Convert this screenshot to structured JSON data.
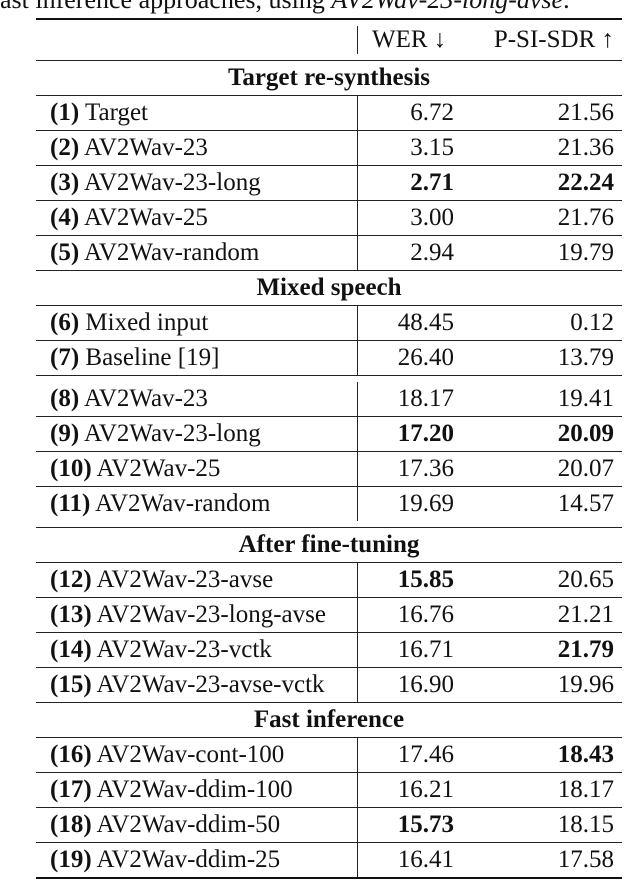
{
  "caption": {
    "prefix": "ast inference approaches, using ",
    "italic": "AV2Wav-23-long-avse",
    "suffix": "."
  },
  "columns": [
    "WER ↓",
    "P-SI-SDR ↑"
  ],
  "sections": [
    {
      "title": "Target re-synthesis",
      "rows": [
        {
          "num": "(1)",
          "name": "Target",
          "wer": "6.72",
          "sdr": "21.56",
          "wer_bold": false,
          "sdr_bold": false
        },
        {
          "num": "(2)",
          "name": "AV2Wav-23",
          "wer": "3.15",
          "sdr": "21.36",
          "wer_bold": false,
          "sdr_bold": false
        },
        {
          "num": "(3)",
          "name": "AV2Wav-23-long",
          "wer": "2.71",
          "sdr": "22.24",
          "wer_bold": true,
          "sdr_bold": true
        },
        {
          "num": "(4)",
          "name": "AV2Wav-25",
          "wer": "3.00",
          "sdr": "21.76",
          "wer_bold": false,
          "sdr_bold": false
        },
        {
          "num": "(5)",
          "name": "AV2Wav-random",
          "wer": "2.94",
          "sdr": "19.79",
          "wer_bold": false,
          "sdr_bold": false
        }
      ]
    },
    {
      "title": "Mixed speech",
      "rows": [
        {
          "num": "(6)",
          "name": "Mixed input",
          "wer": "48.45",
          "sdr": "0.12",
          "wer_bold": false,
          "sdr_bold": false
        },
        {
          "num": "(7)",
          "name": "Baseline [19]",
          "wer": "26.40",
          "sdr": "13.79",
          "wer_bold": false,
          "sdr_bold": false
        }
      ],
      "rows2": [
        {
          "num": "(8)",
          "name": "AV2Wav-23",
          "wer": "18.17",
          "sdr": "19.41",
          "wer_bold": false,
          "sdr_bold": false
        },
        {
          "num": "(9)",
          "name": "AV2Wav-23-long",
          "wer": "17.20",
          "sdr": "20.09",
          "wer_bold": true,
          "sdr_bold": true
        },
        {
          "num": "(10)",
          "name": "AV2Wav-25",
          "wer": "17.36",
          "sdr": "20.07",
          "wer_bold": false,
          "sdr_bold": false
        },
        {
          "num": "(11)",
          "name": "AV2Wav-random",
          "wer": "19.69",
          "sdr": "14.57",
          "wer_bold": false,
          "sdr_bold": false
        }
      ]
    },
    {
      "title": "After fine-tuning",
      "rows": [
        {
          "num": "(12)",
          "name": "AV2Wav-23-avse",
          "wer": "15.85",
          "sdr": "20.65",
          "wer_bold": true,
          "sdr_bold": false
        },
        {
          "num": "(13)",
          "name": "AV2Wav-23-long-avse",
          "wer": "16.76",
          "sdr": "21.21",
          "wer_bold": false,
          "sdr_bold": false
        },
        {
          "num": "(14)",
          "name": "AV2Wav-23-vctk",
          "wer": "16.71",
          "sdr": "21.79",
          "wer_bold": false,
          "sdr_bold": true
        },
        {
          "num": "(15)",
          "name": "AV2Wav-23-avse-vctk",
          "wer": "16.90",
          "sdr": "19.96",
          "wer_bold": false,
          "sdr_bold": false
        }
      ]
    },
    {
      "title": "Fast inference",
      "rows": [
        {
          "num": "(16)",
          "name": "AV2Wav-cont-100",
          "wer": "17.46",
          "sdr": "18.43",
          "wer_bold": false,
          "sdr_bold": true
        },
        {
          "num": "(17)",
          "name": "AV2Wav-ddim-100",
          "wer": "16.21",
          "sdr": "18.17",
          "wer_bold": false,
          "sdr_bold": false
        },
        {
          "num": "(18)",
          "name": "AV2Wav-ddim-50",
          "wer": "15.73",
          "sdr": "18.15",
          "wer_bold": true,
          "sdr_bold": false
        },
        {
          "num": "(19)",
          "name": "AV2Wav-ddim-25",
          "wer": "16.41",
          "sdr": "17.58",
          "wer_bold": false,
          "sdr_bold": false
        }
      ]
    }
  ]
}
